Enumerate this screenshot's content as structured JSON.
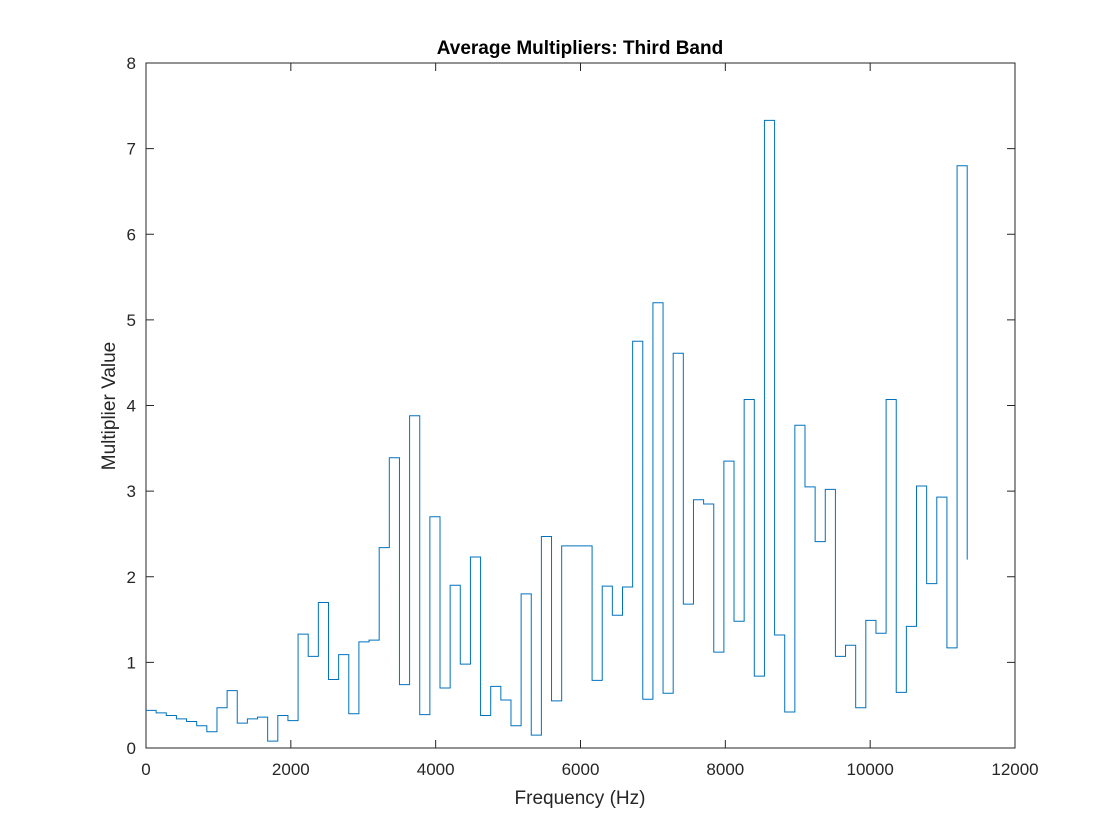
{
  "chart_data": {
    "type": "line",
    "style": "stairs",
    "title": "Average Multipliers: Third Band",
    "xlabel": "Frequency (Hz)",
    "ylabel": "Multiplier Value",
    "xlim": [
      0,
      12000
    ],
    "ylim": [
      0,
      8
    ],
    "xticks": [
      0,
      2000,
      4000,
      6000,
      8000,
      10000,
      12000
    ],
    "xtick_labels": [
      "0",
      "2000",
      "4000",
      "6000",
      "8000",
      "10000",
      "12000"
    ],
    "yticks": [
      0,
      1,
      2,
      3,
      4,
      5,
      6,
      7,
      8
    ],
    "ytick_labels": [
      "0",
      "1",
      "2",
      "3",
      "4",
      "5",
      "6",
      "7",
      "8"
    ],
    "grid": false,
    "box": true,
    "line_color": "#0072BD",
    "axis_color": "#262626",
    "series": [
      {
        "x": [
          0,
          140,
          280,
          420,
          560,
          700,
          840,
          980,
          1120,
          1260,
          1400,
          1540,
          1680,
          1820,
          1960,
          2100,
          2240,
          2380,
          2520,
          2660,
          2800,
          2940,
          3080,
          3220,
          3360,
          3500,
          3640,
          3780,
          3920,
          4060,
          4200,
          4340,
          4480,
          4620,
          4760,
          4900,
          5040,
          5180,
          5320,
          5460,
          5600,
          5740,
          5880,
          6020,
          6160,
          6300,
          6440,
          6580,
          6720,
          6860,
          7000,
          7140,
          7280,
          7420,
          7560,
          7700,
          7840,
          7980,
          8120,
          8260,
          8400,
          8540,
          8680,
          8820,
          8960,
          9100,
          9240,
          9380,
          9520,
          9660,
          9800,
          9940,
          10080,
          10220,
          10360,
          10500,
          10640,
          10780,
          10920,
          11060,
          11200,
          11340
        ],
        "y": [
          0.44,
          0.41,
          0.38,
          0.34,
          0.31,
          0.26,
          0.19,
          0.47,
          0.67,
          0.29,
          0.34,
          0.36,
          0.08,
          0.38,
          0.32,
          1.33,
          1.07,
          1.7,
          0.8,
          1.09,
          0.4,
          1.24,
          1.26,
          2.34,
          3.39,
          0.74,
          3.88,
          0.39,
          2.7,
          0.7,
          1.9,
          0.98,
          2.23,
          0.38,
          0.72,
          0.56,
          0.26,
          1.8,
          0.15,
          2.47,
          0.55,
          2.36,
          2.36,
          2.36,
          0.79,
          1.89,
          1.55,
          1.88,
          4.75,
          0.57,
          5.2,
          0.64,
          4.61,
          1.68,
          2.9,
          2.85,
          1.12,
          3.35,
          1.48,
          4.07,
          0.84,
          7.33,
          1.32,
          0.42,
          3.77,
          3.05,
          2.41,
          3.02,
          1.07,
          1.2,
          0.47,
          1.49,
          1.34,
          4.07,
          0.65,
          1.42,
          3.06,
          1.92,
          2.93,
          1.17,
          6.8,
          2.2
        ]
      }
    ]
  }
}
